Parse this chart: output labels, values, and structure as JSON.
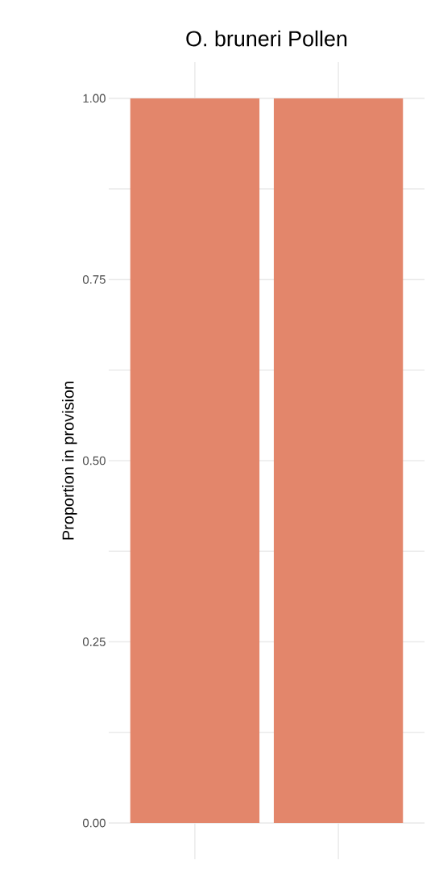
{
  "chart_data": {
    "type": "bar",
    "title": "O. bruneri Pollen",
    "ylabel": "Proportion in provision",
    "categories": [
      null,
      null
    ],
    "values": [
      1.0,
      1.0
    ],
    "color": "#e3866b",
    "ylim": [
      -0.05,
      1.05
    ],
    "yticks": [
      {
        "value": 0,
        "label": "0.00"
      },
      {
        "value": 0.125,
        "label": null
      },
      {
        "value": 0.25,
        "label": "0.25"
      },
      {
        "value": 0.375,
        "label": null
      },
      {
        "value": 0.5,
        "label": "0.50"
      },
      {
        "value": 0.625,
        "label": null
      },
      {
        "value": 0.75,
        "label": "0.75"
      },
      {
        "value": 0.875,
        "label": null
      },
      {
        "value": 1,
        "label": "1.00"
      }
    ],
    "grid": true
  }
}
